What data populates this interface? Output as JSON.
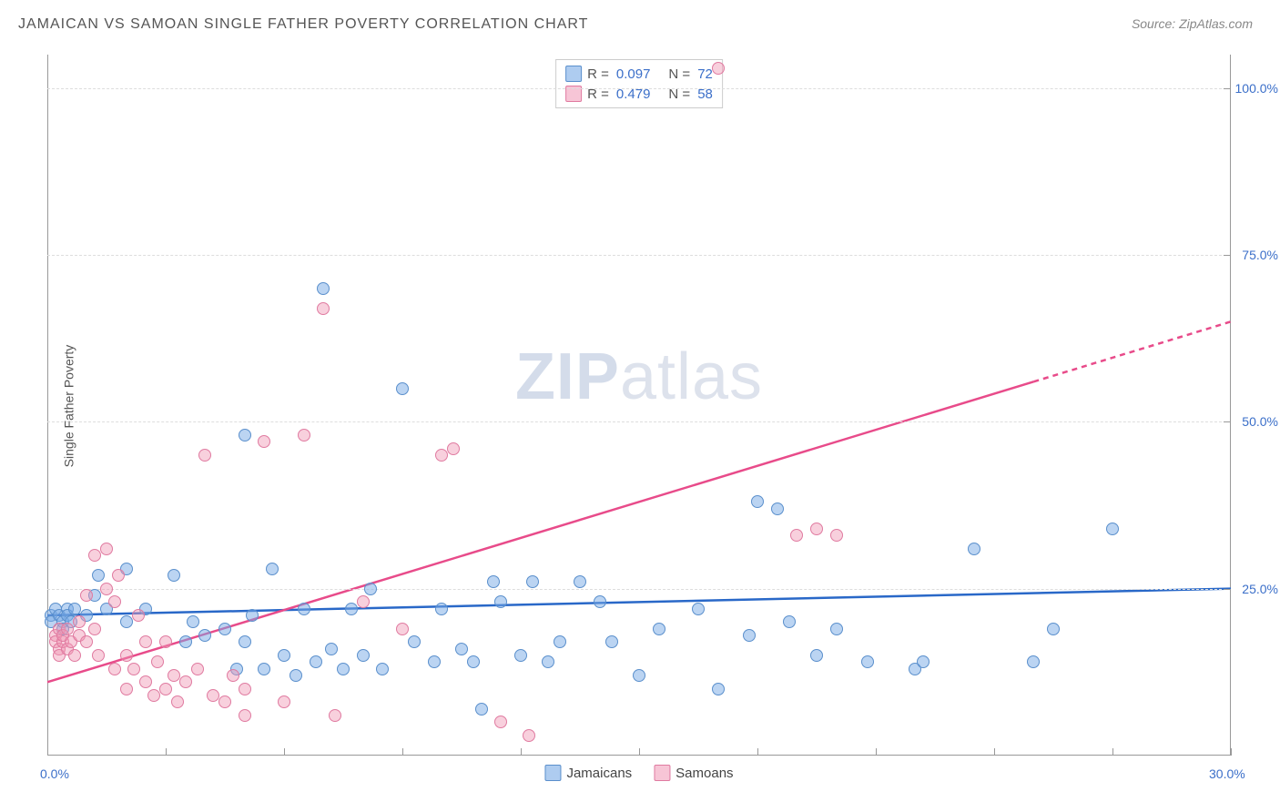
{
  "title": "JAMAICAN VS SAMOAN SINGLE FATHER POVERTY CORRELATION CHART",
  "source": "Source: ZipAtlas.com",
  "ylabel": "Single Father Poverty",
  "watermark_a": "ZIP",
  "watermark_b": "atlas",
  "chart": {
    "type": "scatter",
    "xlim": [
      0,
      30
    ],
    "ylim": [
      0,
      105
    ],
    "xticks": [
      0,
      3,
      6,
      9,
      12,
      15,
      18,
      21,
      24,
      27,
      30
    ],
    "xtick_labels_shown": {
      "0": "0.0%",
      "30": "30.0%"
    },
    "yticks": [
      25,
      50,
      75,
      100
    ],
    "ytick_labels": [
      "25.0%",
      "50.0%",
      "75.0%",
      "100.0%"
    ],
    "grid_color": "#dddddd",
    "background_color": "#ffffff",
    "axis_color": "#999999",
    "label_color": "#3b6fc9",
    "series": [
      {
        "name": "Jamaicans",
        "color_fill": "rgba(120,170,230,0.5)",
        "color_stroke": "#5a8fcc",
        "marker_size": 14,
        "R": 0.097,
        "N": 72,
        "trend": {
          "x1": 0,
          "y1": 21,
          "x2": 30,
          "y2": 25,
          "color": "#2968c8",
          "width": 2.5
        },
        "points": [
          [
            0.1,
            21
          ],
          [
            0.1,
            20
          ],
          [
            0.2,
            22
          ],
          [
            0.3,
            21
          ],
          [
            0.4,
            20
          ],
          [
            0.4,
            19
          ],
          [
            0.5,
            22
          ],
          [
            0.5,
            21
          ],
          [
            0.6,
            20
          ],
          [
            0.7,
            22
          ],
          [
            1.0,
            21
          ],
          [
            1.2,
            24
          ],
          [
            1.3,
            27
          ],
          [
            1.5,
            22
          ],
          [
            2.0,
            28
          ],
          [
            2.0,
            20
          ],
          [
            2.5,
            22
          ],
          [
            3.2,
            27
          ],
          [
            3.5,
            17
          ],
          [
            3.7,
            20
          ],
          [
            4.0,
            18
          ],
          [
            4.5,
            19
          ],
          [
            4.8,
            13
          ],
          [
            5.0,
            17
          ],
          [
            5.0,
            48
          ],
          [
            5.2,
            21
          ],
          [
            5.5,
            13
          ],
          [
            5.7,
            28
          ],
          [
            6.0,
            15
          ],
          [
            6.3,
            12
          ],
          [
            6.5,
            22
          ],
          [
            6.8,
            14
          ],
          [
            7.0,
            70
          ],
          [
            7.2,
            16
          ],
          [
            7.5,
            13
          ],
          [
            7.7,
            22
          ],
          [
            8.0,
            15
          ],
          [
            8.2,
            25
          ],
          [
            8.5,
            13
          ],
          [
            9.0,
            55
          ],
          [
            9.3,
            17
          ],
          [
            9.8,
            14
          ],
          [
            10.0,
            22
          ],
          [
            10.5,
            16
          ],
          [
            10.8,
            14
          ],
          [
            11.0,
            7
          ],
          [
            11.3,
            26
          ],
          [
            11.5,
            23
          ],
          [
            12.0,
            15
          ],
          [
            12.3,
            26
          ],
          [
            12.7,
            14
          ],
          [
            13.0,
            17
          ],
          [
            13.5,
            26
          ],
          [
            14.0,
            23
          ],
          [
            14.3,
            17
          ],
          [
            15.0,
            12
          ],
          [
            15.5,
            19
          ],
          [
            16.5,
            22
          ],
          [
            17.0,
            10
          ],
          [
            17.8,
            18
          ],
          [
            18.0,
            38
          ],
          [
            18.5,
            37
          ],
          [
            18.8,
            20
          ],
          [
            19.5,
            15
          ],
          [
            20.0,
            19
          ],
          [
            20.8,
            14
          ],
          [
            22.0,
            13
          ],
          [
            22.2,
            14
          ],
          [
            23.5,
            31
          ],
          [
            25.0,
            14
          ],
          [
            25.5,
            19
          ],
          [
            27.0,
            34
          ]
        ]
      },
      {
        "name": "Samoans",
        "color_fill": "rgba(240,150,180,0.45)",
        "color_stroke": "#e07aa0",
        "marker_size": 14,
        "R": 0.479,
        "N": 58,
        "trend": {
          "x1": 0,
          "y1": 11,
          "x2": 30,
          "y2": 65,
          "color": "#e84b8a",
          "width": 2.5,
          "dash_from_x": 25
        },
        "points": [
          [
            0.2,
            18
          ],
          [
            0.2,
            17
          ],
          [
            0.3,
            19
          ],
          [
            0.3,
            16
          ],
          [
            0.3,
            15
          ],
          [
            0.4,
            17
          ],
          [
            0.4,
            18
          ],
          [
            0.5,
            16
          ],
          [
            0.5,
            19
          ],
          [
            0.6,
            17
          ],
          [
            0.7,
            15
          ],
          [
            0.8,
            18
          ],
          [
            0.8,
            20
          ],
          [
            1.0,
            17
          ],
          [
            1.0,
            24
          ],
          [
            1.2,
            19
          ],
          [
            1.2,
            30
          ],
          [
            1.3,
            15
          ],
          [
            1.5,
            25
          ],
          [
            1.5,
            31
          ],
          [
            1.7,
            13
          ],
          [
            1.7,
            23
          ],
          [
            1.8,
            27
          ],
          [
            2.0,
            15
          ],
          [
            2.0,
            10
          ],
          [
            2.2,
            13
          ],
          [
            2.3,
            21
          ],
          [
            2.5,
            11
          ],
          [
            2.5,
            17
          ],
          [
            2.7,
            9
          ],
          [
            2.8,
            14
          ],
          [
            3.0,
            17
          ],
          [
            3.0,
            10
          ],
          [
            3.2,
            12
          ],
          [
            3.3,
            8
          ],
          [
            3.5,
            11
          ],
          [
            3.8,
            13
          ],
          [
            4.0,
            45
          ],
          [
            4.2,
            9
          ],
          [
            4.5,
            8
          ],
          [
            4.7,
            12
          ],
          [
            5.0,
            6
          ],
          [
            5.0,
            10
          ],
          [
            5.5,
            47
          ],
          [
            6.0,
            8
          ],
          [
            6.5,
            48
          ],
          [
            7.0,
            67
          ],
          [
            7.3,
            6
          ],
          [
            8.0,
            23
          ],
          [
            9.0,
            19
          ],
          [
            10.0,
            45
          ],
          [
            10.3,
            46
          ],
          [
            11.5,
            5
          ],
          [
            12.2,
            3
          ],
          [
            17.0,
            103
          ],
          [
            19.0,
            33
          ],
          [
            19.5,
            34
          ],
          [
            20.0,
            33
          ]
        ]
      }
    ],
    "legend_top": [
      {
        "swatch": "blue",
        "R": "0.097",
        "N": "72"
      },
      {
        "swatch": "pink",
        "R": "0.479",
        "N": "58"
      }
    ],
    "legend_bottom": [
      {
        "swatch": "blue",
        "label": "Jamaicans"
      },
      {
        "swatch": "pink",
        "label": "Samoans"
      }
    ]
  }
}
